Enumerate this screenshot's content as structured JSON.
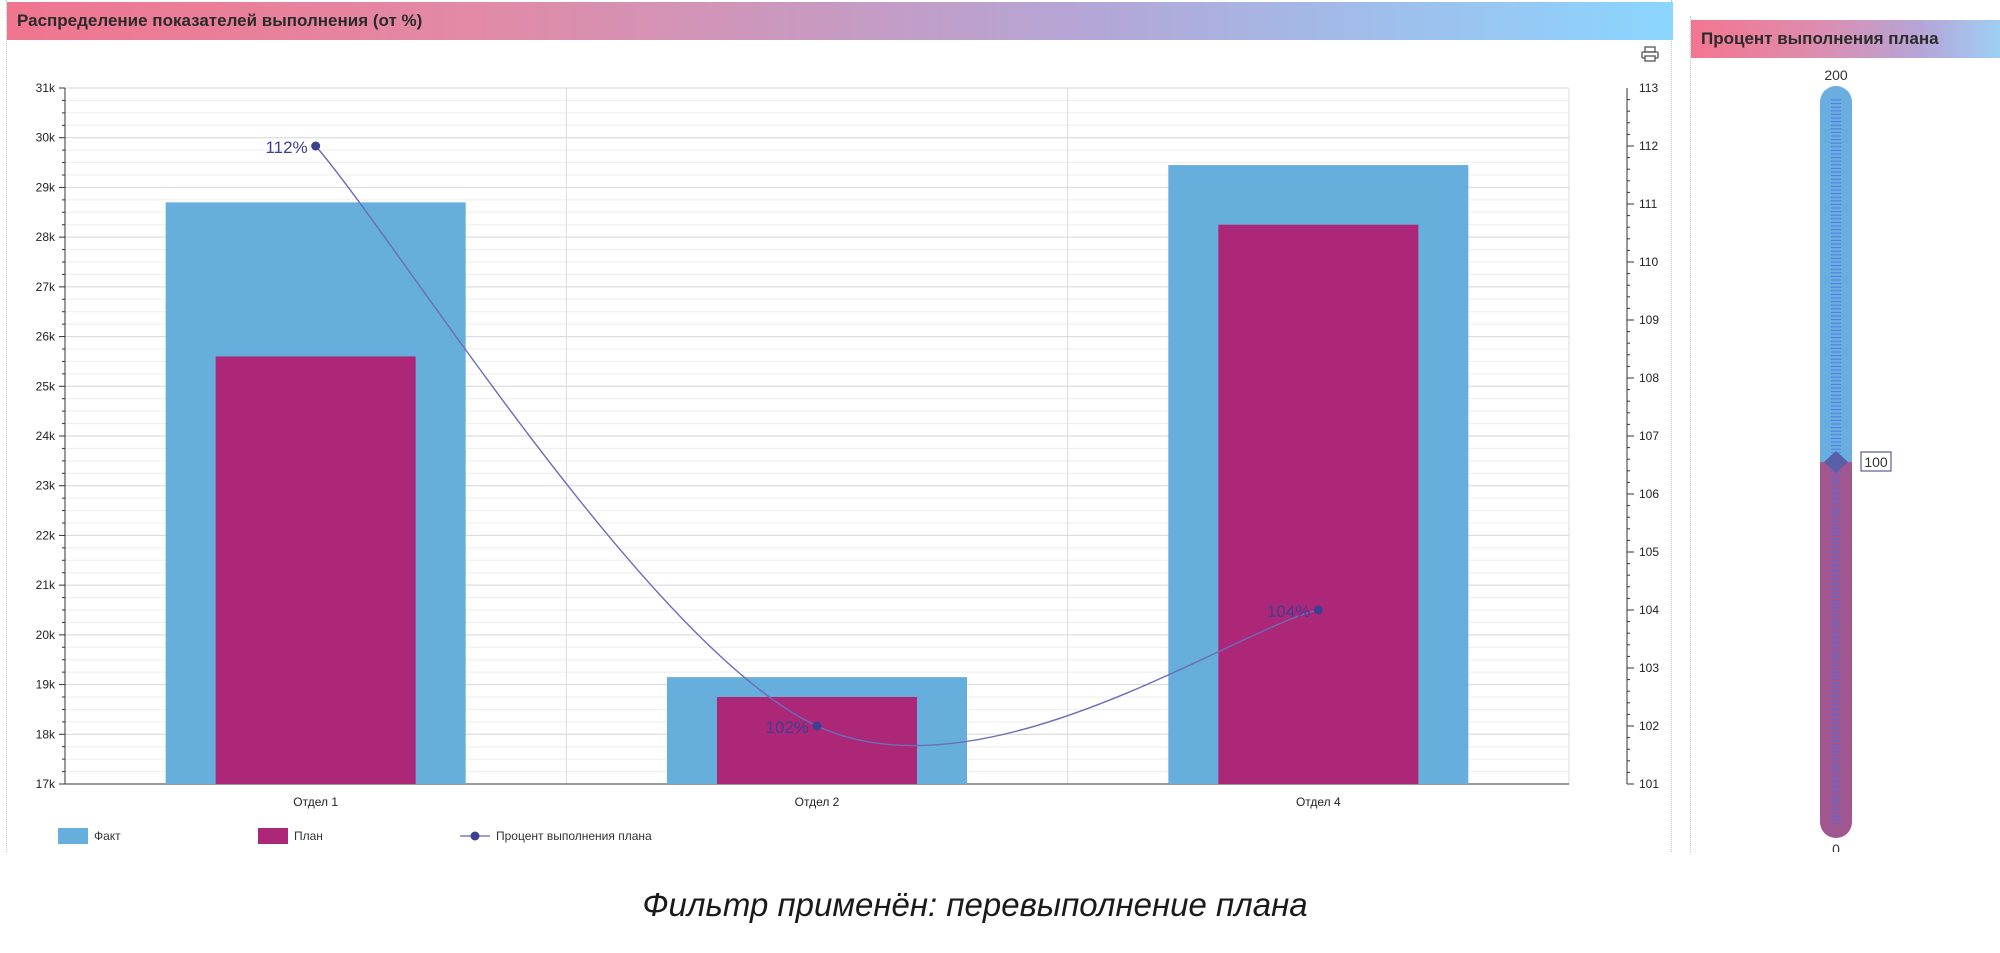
{
  "chart_panel": {
    "title": "Распределение показателей выполнения (от %)",
    "print_icon": "printer-icon"
  },
  "gauge_panel": {
    "title": "Процент выполнения плана",
    "max_label": "200",
    "min_label": "0",
    "value_label": "100",
    "value": 100,
    "min": 0,
    "max": 200,
    "colors": {
      "upper": "#6aaee0",
      "lower": "#a2568f",
      "marker": "#5b5ea8",
      "scale": "#4a6ee8"
    }
  },
  "caption": "Фильтр применён: перевыполнение плана",
  "chart_data": {
    "type": "bar",
    "categories": [
      "Отдел 1",
      "Отдел 2",
      "Отдел 4"
    ],
    "series": [
      {
        "name": "Факт",
        "values": [
          28700,
          19150,
          29450
        ],
        "color": "#66aedb"
      },
      {
        "name": "План",
        "values": [
          25600,
          18750,
          28250
        ],
        "color": "#ad2778"
      },
      {
        "name": "Процент выполнения плана",
        "type": "line",
        "axis": "right",
        "values": [
          112,
          102,
          104
        ],
        "labels": [
          "112%",
          "102%",
          "104%"
        ],
        "color": "#3d3f91"
      }
    ],
    "ylim": [
      17000,
      31000
    ],
    "yticks": [
      "17k",
      "18k",
      "19k",
      "20k",
      "21k",
      "22k",
      "23k",
      "24k",
      "25k",
      "26k",
      "27k",
      "28k",
      "29k",
      "30k",
      "31k"
    ],
    "y2lim": [
      101,
      113
    ],
    "y2ticks": [
      "101",
      "102",
      "103",
      "104",
      "105",
      "106",
      "107",
      "108",
      "109",
      "110",
      "111",
      "112",
      "113"
    ],
    "grid": true,
    "legend_position": "bottom-left"
  }
}
